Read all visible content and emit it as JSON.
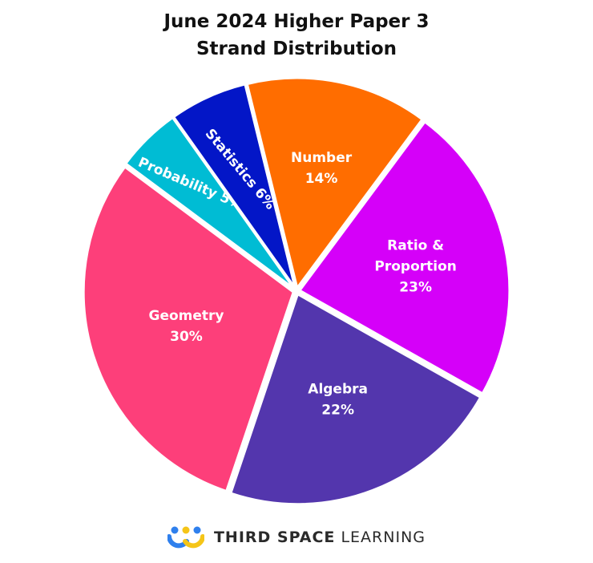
{
  "chart_data": {
    "type": "pie",
    "title": "June 2024 Higher Paper 3",
    "subtitle": "Strand Distribution",
    "slices": [
      {
        "label": "Number",
        "value": 14,
        "display": "14%",
        "color": "#ff6d00"
      },
      {
        "label": "Ratio & Proportion",
        "value": 23,
        "display": "23%",
        "color": "#d500f9"
      },
      {
        "label": "Algebra",
        "value": 22,
        "display": "22%",
        "color": "#5336ad"
      },
      {
        "label": "Geometry",
        "value": 30,
        "display": "30%",
        "color": "#fd3f7a"
      },
      {
        "label": "Probability",
        "value": 5,
        "display": "5%",
        "color": "#00bcd4"
      },
      {
        "label": "Statistics",
        "value": 6,
        "display": "6%",
        "color": "#0316c7"
      }
    ]
  },
  "footer": {
    "brand_strong": "THIRD SPACE",
    "brand_light": "LEARNING",
    "logo_colors": [
      "#f5c518",
      "#2f80ed"
    ]
  }
}
